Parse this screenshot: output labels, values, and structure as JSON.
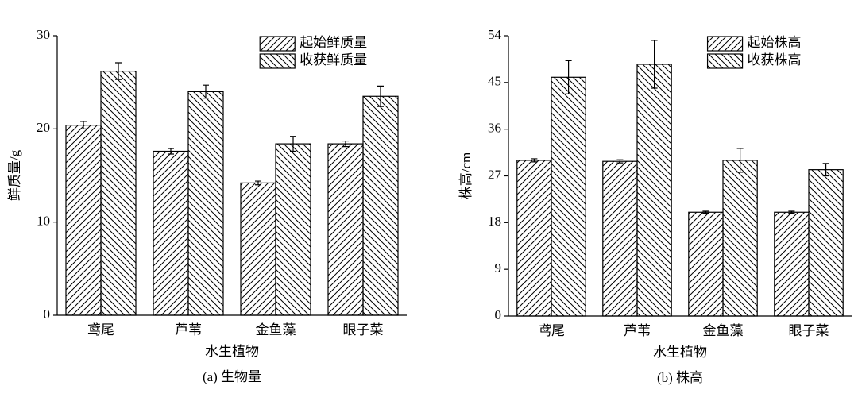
{
  "chart_data": [
    {
      "type": "bar",
      "caption": "(a) 生物量",
      "xlabel": "水生植物",
      "ylabel": "鲜质量/g",
      "categories": [
        "鸢尾",
        "芦苇",
        "金鱼藻",
        "眼子菜"
      ],
      "series": [
        {
          "name": "起始鲜质量",
          "color": "#000000",
          "hatch": "/",
          "values": [
            20.4,
            17.6,
            14.2,
            18.4
          ],
          "errors": [
            0.4,
            0.3,
            0.2,
            0.3
          ]
        },
        {
          "name": "收获鲜质量",
          "color": "#000000",
          "hatch": "\\",
          "values": [
            26.2,
            24.0,
            18.4,
            23.5
          ],
          "errors": [
            0.9,
            0.7,
            0.8,
            1.1
          ]
        }
      ],
      "ylim": [
        0,
        30
      ],
      "yticks": [
        0,
        10,
        20,
        30
      ],
      "grid": false,
      "legend": "upper right"
    },
    {
      "type": "bar",
      "caption": "(b) 株高",
      "xlabel": "水生植物",
      "ylabel": "株高/cm",
      "categories": [
        "鸢尾",
        "芦苇",
        "金鱼藻",
        "眼子菜"
      ],
      "series": [
        {
          "name": "起始株高",
          "color": "#000000",
          "hatch": "/",
          "values": [
            30.0,
            29.8,
            20.0,
            20.0
          ],
          "errors": [
            0.3,
            0.3,
            0.2,
            0.2
          ]
        },
        {
          "name": "收获株高",
          "color": "#000000",
          "hatch": "\\",
          "values": [
            46.0,
            48.5,
            30.0,
            28.2
          ],
          "errors": [
            3.2,
            4.6,
            2.3,
            1.2
          ]
        }
      ],
      "ylim": [
        0,
        54
      ],
      "yticks": [
        0,
        9,
        18,
        27,
        36,
        45,
        54
      ],
      "grid": false,
      "legend": "upper right"
    }
  ]
}
